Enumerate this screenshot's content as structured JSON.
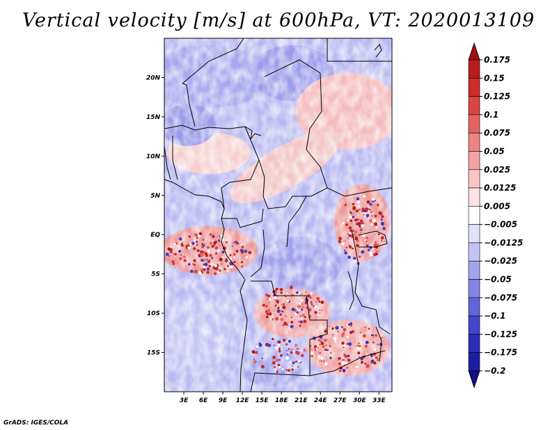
{
  "title": "Vertical velocity [m/s] at 600hPa, VT: 2020013109",
  "credit": "GrADS: IGES/COLA",
  "map": {
    "lon_range": [
      0,
      35
    ],
    "lat_range": [
      -20,
      25
    ],
    "lat_ticks": [
      {
        "lat": 20,
        "label": "20N"
      },
      {
        "lat": 15,
        "label": "15N"
      },
      {
        "lat": 10,
        "label": "10N"
      },
      {
        "lat": 5,
        "label": "5N"
      },
      {
        "lat": 0,
        "label": "EQ"
      },
      {
        "lat": -5,
        "label": "5S"
      },
      {
        "lat": -10,
        "label": "10S"
      },
      {
        "lat": -15,
        "label": "15S"
      }
    ],
    "lon_ticks": [
      {
        "lon": 3,
        "label": "3E"
      },
      {
        "lon": 6,
        "label": "6E"
      },
      {
        "lon": 9,
        "label": "9E"
      },
      {
        "lon": 12,
        "label": "12E"
      },
      {
        "lon": 15,
        "label": "15E"
      },
      {
        "lon": 18,
        "label": "18E"
      },
      {
        "lon": 21,
        "label": "21E"
      },
      {
        "lon": 24,
        "label": "24E"
      },
      {
        "lon": 27,
        "label": "27E"
      },
      {
        "lon": 30,
        "label": "30E"
      },
      {
        "lon": 33,
        "label": "33E"
      }
    ]
  },
  "colorbar": {
    "levels": [
      "0.175",
      "0.15",
      "0.125",
      "0.1",
      "0.075",
      "0.05",
      "0.025",
      "0.0125",
      "0.005",
      "-0.005",
      "-0.0125",
      "-0.025",
      "-0.05",
      "-0.075",
      "-0.1",
      "-0.125",
      "-0.175",
      "-0.2"
    ],
    "colors": [
      "#a01010",
      "#b81c1c",
      "#cc2c2c",
      "#da4444",
      "#e46464",
      "#ec8484",
      "#f2a4a4",
      "#f8c4c4",
      "#fce2e2",
      "#ffffff",
      "#e2e2fa",
      "#c4c4f4",
      "#a4a4ec",
      "#8484e4",
      "#6464da",
      "#4444cc",
      "#2c2cb8",
      "#1c1c9e",
      "#101080"
    ]
  }
}
